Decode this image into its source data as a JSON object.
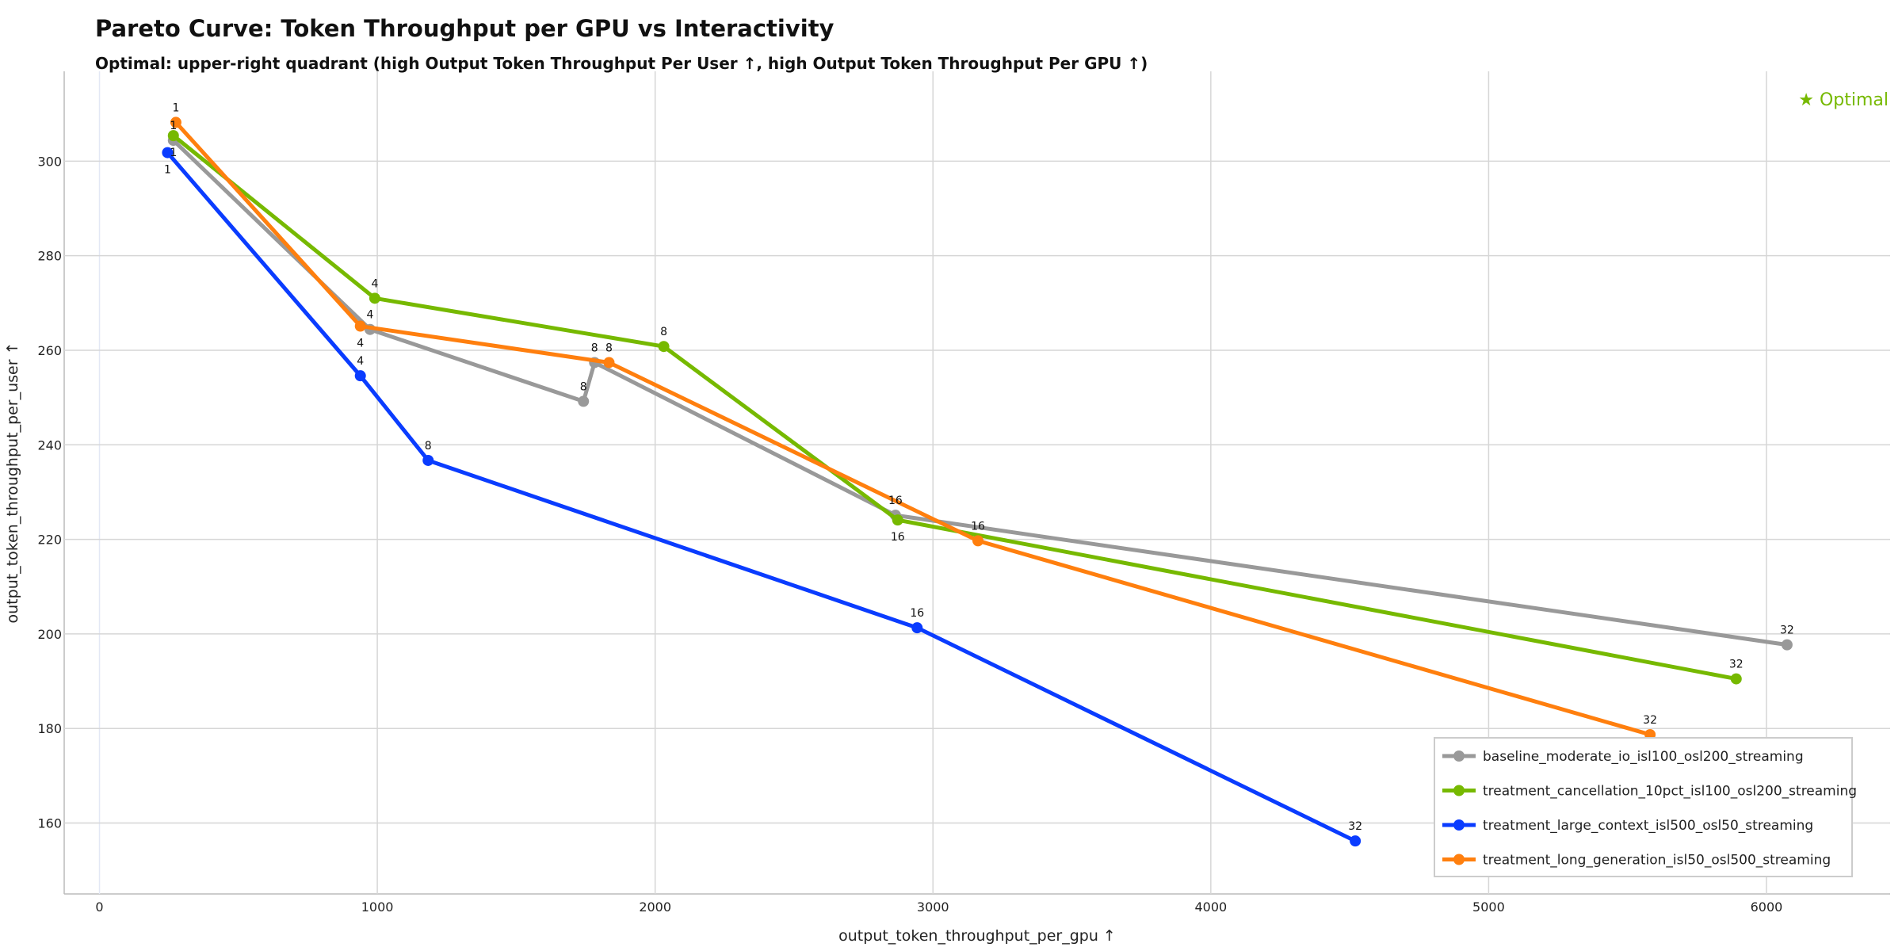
{
  "chart_data": {
    "type": "line",
    "title": "Pareto Curve: Token Throughput per GPU vs Interactivity",
    "subtitle": "Optimal: upper-right quadrant (high Output Token Throughput Per User ↑, high Output Token Throughput Per GPU ↑)",
    "xlabel": "output_token_throughput_per_gpu ↑",
    "ylabel": "output_token_throughput_per_user ↑",
    "xlim": [
      -127,
      6445
    ],
    "ylim": [
      145,
      319
    ],
    "xticks": [
      0,
      1000,
      2000,
      3000,
      4000,
      5000,
      6000
    ],
    "yticks": [
      160,
      180,
      200,
      220,
      240,
      260,
      280,
      300
    ],
    "grid": true,
    "legend_position": "bottom-right",
    "annotation": "★ Optimal",
    "annotation_color": "#76b900",
    "series": [
      {
        "name": "baseline_moderate_io_isl100_osl200_streaming",
        "color": "#999999",
        "points": [
          {
            "x": 266,
            "y": 304.4,
            "label": "1"
          },
          {
            "x": 974,
            "y": 264.4,
            "label": "4"
          },
          {
            "x": 1742,
            "y": 249.2,
            "label": "8"
          },
          {
            "x": 1782,
            "y": 257.4,
            "label": "8"
          },
          {
            "x": 2865,
            "y": 225.1,
            "label": "16"
          },
          {
            "x": 6074,
            "y": 197.7,
            "label": "32"
          }
        ]
      },
      {
        "name": "treatment_cancellation_10pct_isl100_osl200_streaming",
        "color": "#76b900",
        "points": [
          {
            "x": 266,
            "y": 305.4,
            "label": "1"
          },
          {
            "x": 991,
            "y": 271.0,
            "label": "4"
          },
          {
            "x": 2031,
            "y": 260.8,
            "label": "8"
          },
          {
            "x": 2873,
            "y": 224.1,
            "label": "16"
          },
          {
            "x": 5891,
            "y": 190.5,
            "label": "32"
          }
        ]
      },
      {
        "name": "treatment_large_context_isl500_osl50_streaming",
        "color": "#0a3cff",
        "points": [
          {
            "x": 245,
            "y": 301.8,
            "label": "1"
          },
          {
            "x": 939,
            "y": 254.6,
            "label": "4"
          },
          {
            "x": 1183,
            "y": 236.7,
            "label": "8"
          },
          {
            "x": 2943,
            "y": 201.3,
            "label": "16"
          },
          {
            "x": 4520,
            "y": 156.2,
            "label": "32"
          }
        ]
      },
      {
        "name": "treatment_long_generation_isl50_osl500_streaming",
        "color": "#ff7f0e",
        "points": [
          {
            "x": 275,
            "y": 308.2,
            "label": "1"
          },
          {
            "x": 939,
            "y": 265.1,
            "label": "4"
          },
          {
            "x": 1834,
            "y": 257.4,
            "label": "8"
          },
          {
            "x": 3162,
            "y": 219.7,
            "label": "16"
          },
          {
            "x": 5581,
            "y": 178.7,
            "label": "32"
          }
        ]
      }
    ]
  }
}
